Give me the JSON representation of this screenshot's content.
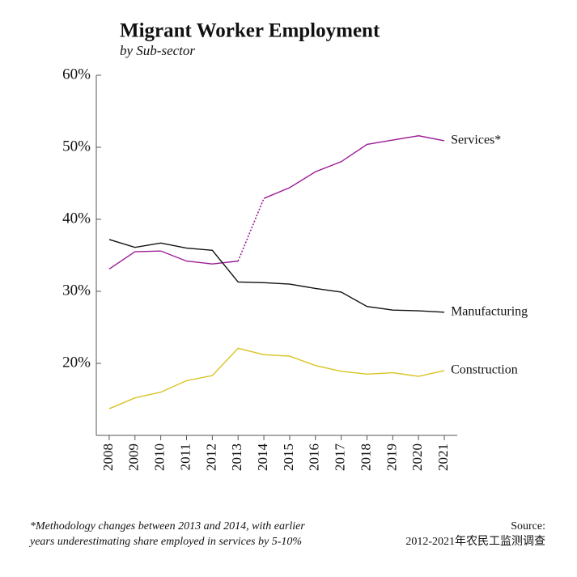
{
  "chart_data": {
    "type": "line",
    "title": "Migrant Worker Employment",
    "subtitle": "by Sub-sector",
    "x": [
      2008,
      2009,
      2010,
      2011,
      2012,
      2013,
      2014,
      2015,
      2016,
      2017,
      2018,
      2019,
      2020,
      2021
    ],
    "xlim": [
      2007.5,
      2021.5
    ],
    "xticks": [
      2008,
      2009,
      2010,
      2011,
      2012,
      2013,
      2014,
      2015,
      2016,
      2017,
      2018,
      2019,
      2020,
      2021
    ],
    "ylim": [
      10,
      60
    ],
    "yticks": [
      {
        "value": 20,
        "label": "20%"
      },
      {
        "value": 30,
        "label": "30%"
      },
      {
        "value": 40,
        "label": "40%"
      },
      {
        "value": 50,
        "label": "50%"
      },
      {
        "value": 60,
        "label": "60%"
      }
    ],
    "series": [
      {
        "name": "Services*",
        "color": "#9c1b96",
        "dotted_between": [
          2013,
          2014
        ],
        "values": [
          33.1,
          35.5,
          35.6,
          34.2,
          33.8,
          34.2,
          42.9,
          44.4,
          46.6,
          48.0,
          50.4,
          51.0,
          51.6,
          50.9
        ]
      },
      {
        "name": "Manufacturing",
        "color": "#111111",
        "values": [
          37.2,
          36.1,
          36.7,
          36.0,
          35.7,
          31.3,
          31.2,
          31.0,
          30.4,
          29.9,
          27.9,
          27.4,
          27.3,
          27.1
        ]
      },
      {
        "name": "Construction",
        "color": "#d8c421",
        "values": [
          13.7,
          15.2,
          16.0,
          17.6,
          18.3,
          22.1,
          21.2,
          21.0,
          19.7,
          18.9,
          18.5,
          18.7,
          18.2,
          19.0
        ]
      }
    ],
    "footnote": [
      "*Methodology changes between 2013 and 2014, with earlier",
      "years underestimating share employed in services by 5-10%"
    ],
    "source": [
      "Source:",
      "2012-2021年农民工监测调查"
    ]
  }
}
